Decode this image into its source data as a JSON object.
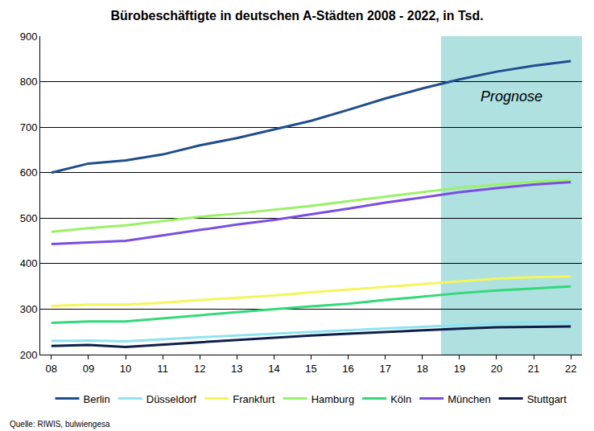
{
  "chart_data": {
    "type": "line",
    "title": "Bürobeschäftigte in deutschen A-Städten 2008 - 2022, in Tsd.",
    "source": "Quelle: RIWIS, bulwiengesa",
    "forecast": {
      "label": "Prognose",
      "from": "19"
    },
    "categories": [
      "08",
      "09",
      "10",
      "11",
      "12",
      "13",
      "14",
      "15",
      "16",
      "17",
      "18",
      "19",
      "20",
      "21",
      "22"
    ],
    "series": [
      {
        "name": "Berlin",
        "color": "#1F4E8C",
        "values": [
          600,
          620,
          627,
          640,
          660,
          676,
          695,
          714,
          738,
          763,
          785,
          805,
          822,
          835,
          845
        ]
      },
      {
        "name": "Düsseldorf",
        "color": "#8FE3F0",
        "values": [
          230,
          231,
          229,
          234,
          238,
          242,
          246,
          250,
          254,
          258,
          262,
          266,
          269,
          271,
          272
        ]
      },
      {
        "name": "Frankfurt",
        "color": "#F5F55A",
        "values": [
          307,
          310,
          310,
          314,
          320,
          325,
          330,
          337,
          343,
          350,
          356,
          362,
          367,
          370,
          372
        ]
      },
      {
        "name": "Hamburg",
        "color": "#99F266",
        "values": [
          470,
          478,
          484,
          493,
          503,
          510,
          518,
          527,
          537,
          547,
          557,
          567,
          574,
          580,
          584
        ]
      },
      {
        "name": "Köln",
        "color": "#33D979",
        "values": [
          270,
          273,
          273,
          280,
          287,
          294,
          300,
          306,
          312,
          320,
          328,
          335,
          341,
          346,
          350
        ]
      },
      {
        "name": "München",
        "color": "#7A4FE0",
        "values": [
          443,
          446,
          450,
          462,
          474,
          486,
          496,
          508,
          521,
          534,
          546,
          557,
          566,
          574,
          579
        ]
      },
      {
        "name": "Stuttgart",
        "color": "#0F1F4A",
        "values": [
          219,
          221,
          217,
          222,
          228,
          233,
          237,
          242,
          246,
          250,
          254,
          257,
          260,
          261,
          262
        ]
      }
    ],
    "ylim": [
      200,
      900
    ],
    "yticks": [
      200,
      300,
      400,
      500,
      600,
      700,
      800,
      900
    ],
    "grid": true,
    "legend": "bottom"
  }
}
